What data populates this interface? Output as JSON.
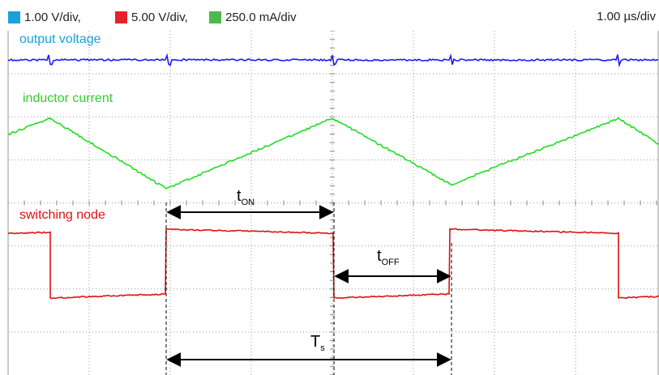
{
  "header": {
    "channels": [
      {
        "label": "1.00 V/div,",
        "color": "#1aa0dc"
      },
      {
        "label": "5.00 V/div,",
        "color": "#e8202a"
      },
      {
        "label": "250.0 mA/div",
        "color": "#4cbb4c"
      }
    ],
    "timebase": "1.00 µs/div"
  },
  "traces": {
    "output_voltage": {
      "label": "output voltage",
      "color": "#1a1aff",
      "label_color": "#1aa0dc"
    },
    "inductor_current": {
      "label": "inductor current",
      "color": "#22dd22",
      "label_color": "#33cc33"
    },
    "switching_node": {
      "label": "switching node",
      "color": "#e01010",
      "label_color": "#e01010"
    }
  },
  "annotations": {
    "t_on": {
      "main": "t",
      "sub": "ON"
    },
    "t_off": {
      "main": "t",
      "sub": "OFF"
    },
    "t_s": {
      "main": "T",
      "sub": "s"
    }
  }
}
